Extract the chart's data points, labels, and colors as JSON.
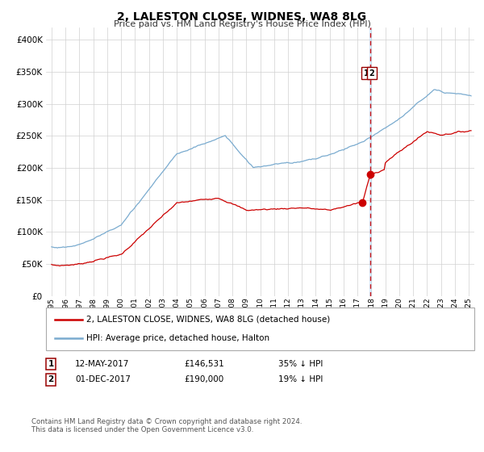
{
  "title": "2, LALESTON CLOSE, WIDNES, WA8 8LG",
  "subtitle": "Price paid vs. HM Land Registry's House Price Index (HPI)",
  "legend_line1": "2, LALESTON CLOSE, WIDNES, WA8 8LG (detached house)",
  "legend_line2": "HPI: Average price, detached house, Halton",
  "annotation1_date": "12-MAY-2017",
  "annotation1_price": "£146,531",
  "annotation1_hpi": "35% ↓ HPI",
  "annotation2_date": "01-DEC-2017",
  "annotation2_price": "£190,000",
  "annotation2_hpi": "19% ↓ HPI",
  "footer": "Contains HM Land Registry data © Crown copyright and database right 2024.\nThis data is licensed under the Open Government Licence v3.0.",
  "red_color": "#cc0000",
  "blue_color": "#7aabcf",
  "vline_color": "#cc0000",
  "vline_x": 2017.92,
  "marker_date1_y": 146531,
  "marker_date2_y": 190000,
  "ylim": [
    0,
    420000
  ],
  "yticks": [
    0,
    50000,
    100000,
    150000,
    200000,
    250000,
    300000,
    350000,
    400000
  ],
  "xlim_left": 1994.6,
  "xlim_right": 2025.4
}
